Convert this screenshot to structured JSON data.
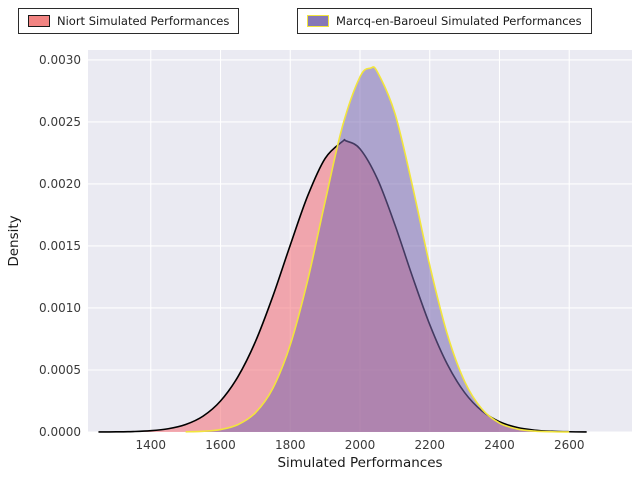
{
  "figure": {
    "background": "#ffffff",
    "plot_background": "#eaeaf2",
    "grid_color": "#ffffff",
    "tick_color": "#3a3a3a"
  },
  "legend": {
    "items": [
      {
        "label": "Niort Simulated Performances",
        "fill": "#f28482",
        "edge": "#1a1a1a"
      },
      {
        "label": "Marcq-en-Baroeul Simulated Performances",
        "fill": "#8678b8",
        "edge": "#f2e53c"
      }
    ]
  },
  "chart_data": {
    "type": "area",
    "title": "",
    "xlabel": "Simulated Performances",
    "ylabel": "Density",
    "xlim": [
      1220,
      2780
    ],
    "ylim": [
      0,
      0.00308
    ],
    "grid": true,
    "legend_position": "top",
    "xticks": [
      1400,
      1600,
      1800,
      2000,
      2200,
      2400,
      2600
    ],
    "yticks": [
      0,
      0.0005,
      0.001,
      0.0015,
      0.002,
      0.0025,
      0.003
    ],
    "ytick_labels": [
      "0.0000",
      "0.0005",
      "0.0010",
      "0.0015",
      "0.0020",
      "0.0025",
      "0.0030"
    ],
    "series": [
      {
        "name": "Niort Simulated Performances",
        "fill_color": "#f4737a",
        "fill_opacity": 0.58,
        "line_color": "#000000",
        "peak_x": 1960,
        "peak_y": 0.00235,
        "points": [
          [
            1250,
            4e-07
          ],
          [
            1300,
            1.2e-06
          ],
          [
            1350,
            3.7e-06
          ],
          [
            1400,
            1.03e-05
          ],
          [
            1450,
            2.61e-05
          ],
          [
            1500,
            6.03e-05
          ],
          [
            1550,
            0.000128
          ],
          [
            1600,
            0.00025
          ],
          [
            1650,
            0.000446
          ],
          [
            1700,
            0.000728
          ],
          [
            1750,
            0.001094
          ],
          [
            1800,
            0.001507
          ],
          [
            1850,
            0.001904
          ],
          [
            1900,
            0.002206
          ],
          [
            1950,
            0.002343
          ],
          [
            1960,
            0.002347
          ],
          [
            2000,
            0.002283
          ],
          [
            2050,
            0.00204
          ],
          [
            2100,
            0.001672
          ],
          [
            2150,
            0.001256
          ],
          [
            2200,
            0.000866
          ],
          [
            2250,
            0.000548
          ],
          [
            2300,
            0.000318
          ],
          [
            2350,
            0.000169
          ],
          [
            2400,
            8.25e-05
          ],
          [
            2450,
            3.7e-05
          ],
          [
            2500,
            1.51e-05
          ],
          [
            2550,
            5.7e-06
          ],
          [
            2600,
            2e-06
          ],
          [
            2650,
            7e-07
          ]
        ]
      },
      {
        "name": "Marcq-en-Baroeul Simulated Performances",
        "fill_color": "#7a6ab0",
        "fill_opacity": 0.55,
        "line_color": "#f2e53c",
        "peak_x": 2030,
        "peak_y": 0.00293,
        "points": [
          [
            1500,
            1.5e-06
          ],
          [
            1550,
            5.8e-06
          ],
          [
            1600,
            1.97e-05
          ],
          [
            1650,
            5.93e-05
          ],
          [
            1700,
            0.000155
          ],
          [
            1750,
            0.000352
          ],
          [
            1800,
            0.000702
          ],
          [
            1850,
            0.001223
          ],
          [
            1900,
            0.001858
          ],
          [
            1950,
            0.002468
          ],
          [
            2000,
            0.002864
          ],
          [
            2030,
            0.002934
          ],
          [
            2050,
            0.002903
          ],
          [
            2100,
            0.00257
          ],
          [
            2150,
            0.001989
          ],
          [
            2200,
            0.001344
          ],
          [
            2250,
            0.000792
          ],
          [
            2300,
            0.000408
          ],
          [
            2350,
            0.000184
          ],
          [
            2400,
            7.25e-05
          ],
          [
            2450,
            2.49e-05
          ],
          [
            2500,
            7.4e-06
          ],
          [
            2550,
            1.9e-06
          ],
          [
            2600,
            5e-07
          ]
        ]
      }
    ]
  }
}
